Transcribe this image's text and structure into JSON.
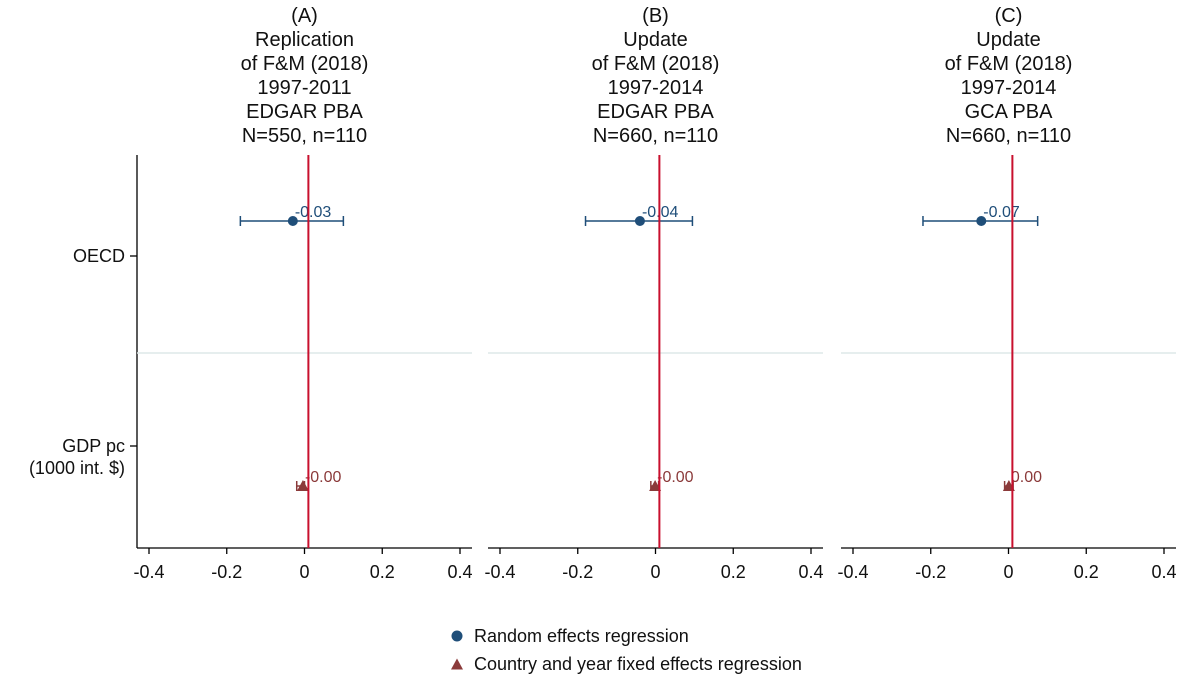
{
  "chart_data": {
    "type": "coefficient-plot",
    "panels": [
      {
        "title_lines": [
          "(A)",
          "Replication",
          "of F&M (2018)",
          "1997-2011",
          "EDGAR PBA",
          "N=550, n=110"
        ],
        "estimates": [
          {
            "variable": "OECD",
            "model": "re",
            "coef": -0.03,
            "ci": [
              -0.165,
              0.1
            ],
            "label": "-0.03"
          },
          {
            "variable": "GDP pc",
            "model": "fe",
            "coef": -0.004,
            "ci": [
              -0.02,
              0.0
            ],
            "label": "-0.00"
          }
        ]
      },
      {
        "title_lines": [
          "(B)",
          "Update",
          "of F&M (2018)",
          "1997-2014",
          "EDGAR PBA",
          "N=660, n=110"
        ],
        "estimates": [
          {
            "variable": "OECD",
            "model": "re",
            "coef": -0.04,
            "ci": [
              -0.18,
              0.095
            ],
            "label": "-0.04"
          },
          {
            "variable": "GDP pc",
            "model": "fe",
            "coef": -0.001,
            "ci": [
              -0.012,
              0.008
            ],
            "label": "-0.00"
          }
        ]
      },
      {
        "title_lines": [
          "(C)",
          "Update",
          "of F&M (2018)",
          "1997-2014",
          "GCA PBA",
          "N=660, n=110"
        ],
        "estimates": [
          {
            "variable": "OECD",
            "model": "re",
            "coef": -0.07,
            "ci": [
              -0.22,
              0.075
            ],
            "label": "-0.07"
          },
          {
            "variable": "GDP pc",
            "model": "fe",
            "coef": 0.001,
            "ci": [
              -0.01,
              0.012
            ],
            "label": "0.00"
          }
        ]
      }
    ],
    "variables": [
      {
        "key": "OECD",
        "label_lines": [
          "OECD"
        ]
      },
      {
        "key": "GDP pc",
        "label_lines": [
          "GDP pc",
          "(1000 int. $)"
        ]
      }
    ],
    "xlim": [
      -0.4,
      0.4
    ],
    "xticks": [
      -0.4,
      -0.2,
      0,
      0.2,
      0.4
    ],
    "xtick_labels": [
      "-0.4",
      "-0.2",
      "0",
      "0.2",
      "0.4"
    ],
    "reference_line": 0.01,
    "legend": [
      {
        "model": "re",
        "label": "Random effects regression",
        "marker": "circle",
        "color": "#1f4e79"
      },
      {
        "model": "fe",
        "label": "Country and year fixed effects regression",
        "marker": "triangle",
        "color": "#8b3a3a"
      }
    ],
    "colors": {
      "re": "#1f4e79",
      "fe": "#8b3a3a",
      "refline": "#c8102e",
      "separator": "#dde8e8",
      "axis": "#000000"
    }
  }
}
